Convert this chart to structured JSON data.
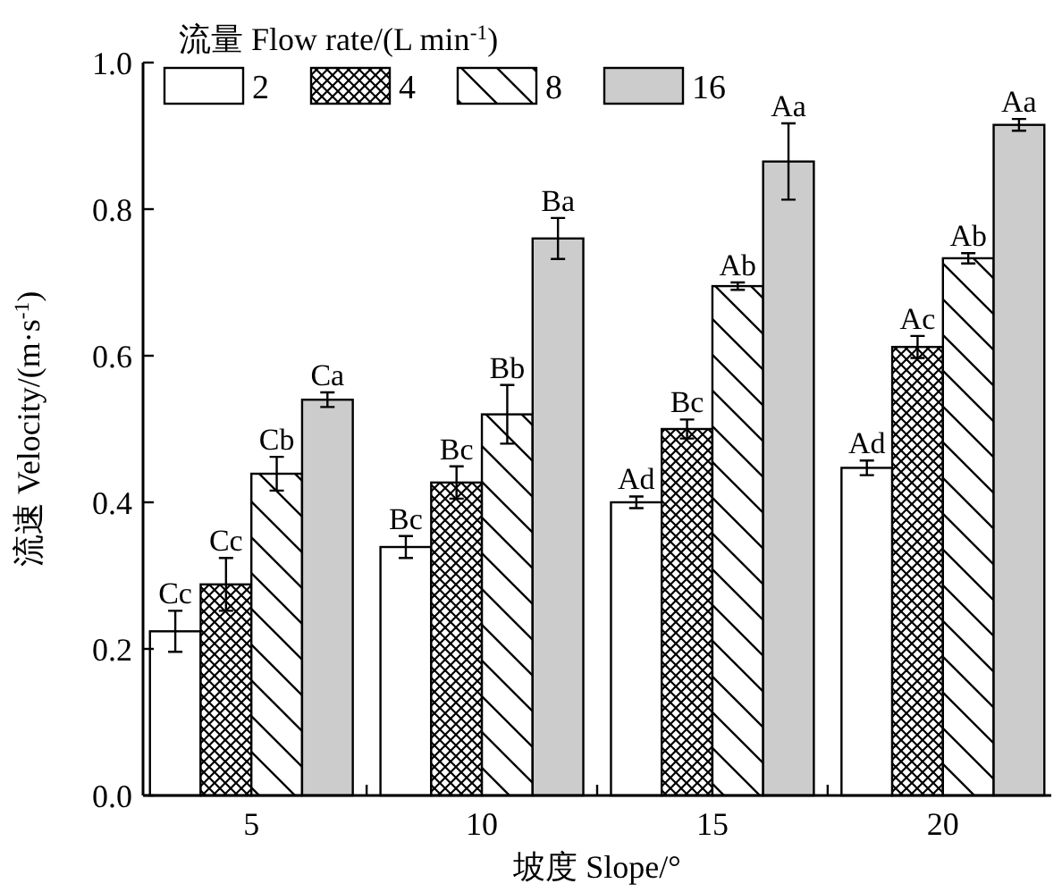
{
  "chart_data": {
    "type": "bar",
    "xlabel": "坡度 Slope/°",
    "ylabel": "流速 Velocity/(m·s$^{-1}$)",
    "legend_title": "流量 Flow rate/(L min$^{-1}$)",
    "categories": [
      "5",
      "10",
      "15",
      "20"
    ],
    "series": [
      {
        "name": "2",
        "color": "#ffffff",
        "values": [
          0.224,
          0.339,
          0.4,
          0.447
        ],
        "errors": [
          0.028,
          0.015,
          0.008,
          0.01
        ],
        "value_labels": [
          "Cc",
          "Bc",
          "Ad",
          "Ad"
        ]
      },
      {
        "name": "4",
        "color": "#000000",
        "values": [
          0.288,
          0.427,
          0.5,
          0.612
        ],
        "errors": [
          0.036,
          0.022,
          0.013,
          0.015
        ],
        "value_labels": [
          "Cc",
          "Bc",
          "Bc",
          "Ac"
        ]
      },
      {
        "name": "8",
        "color": "#000000",
        "values": [
          0.439,
          0.52,
          0.695,
          0.733
        ],
        "errors": [
          0.023,
          0.04,
          0.005,
          0.007
        ],
        "value_labels": [
          "Cb",
          "Bb",
          "Ab",
          "Ab"
        ]
      },
      {
        "name": "16",
        "color": "#cccccc",
        "values": [
          0.54,
          0.76,
          0.865,
          0.915
        ],
        "errors": [
          0.01,
          0.028,
          0.052,
          0.008
        ],
        "value_labels": [
          "Ca",
          "Ba",
          "Aa",
          "Aa"
        ]
      }
    ],
    "ylim": [
      0,
      1
    ],
    "yticks": [
      {
        "value": 0,
        "label": "0.0"
      },
      {
        "value": 0.2,
        "label": "0.2"
      },
      {
        "value": 0.4,
        "label": "0.4"
      },
      {
        "value": 0.6,
        "label": "0.6"
      },
      {
        "value": 0.8,
        "label": "0.8"
      },
      {
        "value": 1,
        "label": "1.0"
      }
    ],
    "grid": false,
    "legend": "top left"
  }
}
